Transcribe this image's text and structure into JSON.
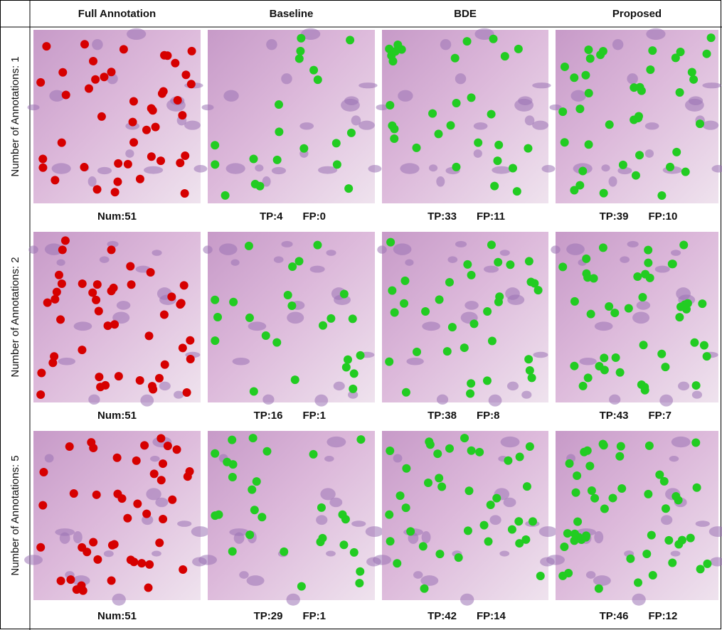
{
  "columns": [
    "Full  Annotation",
    "Baseline",
    "BDE",
    "Proposed"
  ],
  "rows": [
    {
      "label": "Number of  Annotations: 1",
      "cells": [
        [
          "Num:51"
        ],
        [
          "TP:4",
          "FP:0"
        ],
        [
          "TP:33",
          "FP:11"
        ],
        [
          "TP:39",
          "FP:10"
        ]
      ]
    },
    {
      "label": "Number of  Annotations: 2",
      "cells": [
        [
          "Num:51"
        ],
        [
          "TP:16",
          "FP:1"
        ],
        [
          "TP:38",
          "FP:8"
        ],
        [
          "TP:43",
          "FP:7"
        ]
      ]
    },
    {
      "label": "Number of  Annotations: 5",
      "cells": [
        [
          "Num:51"
        ],
        [
          "TP:29",
          "FP:1"
        ],
        [
          "TP:42",
          "FP:14"
        ],
        [
          "TP:46",
          "FP:12"
        ]
      ]
    }
  ]
}
